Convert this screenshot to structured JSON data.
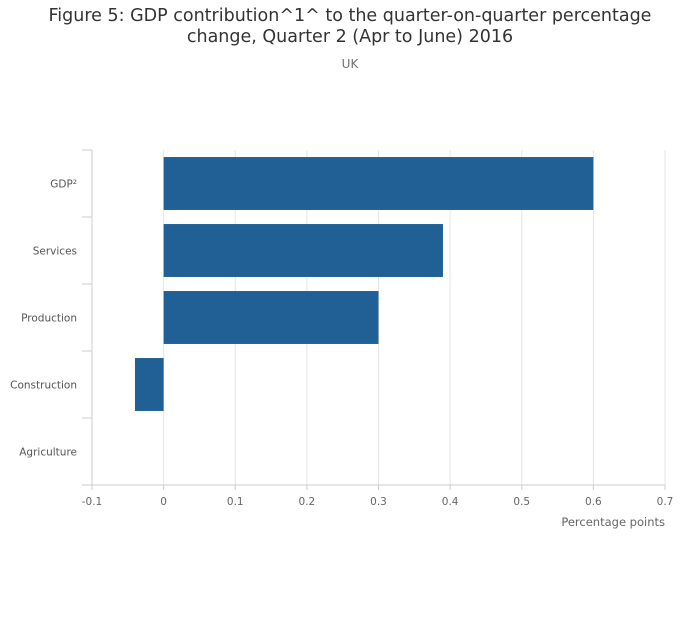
{
  "chart_data": {
    "type": "bar",
    "orientation": "horizontal",
    "title_lines": [
      "Figure 5: GDP contribution^1^ to the quarter-on-quarter percentage",
      "change, Quarter 2 (Apr to June) 2016"
    ],
    "subtitle": "UK",
    "categories": [
      "GDP²",
      "Services",
      "Production",
      "Construction",
      "Agriculture"
    ],
    "values": [
      0.6,
      0.39,
      0.3,
      -0.04,
      0.0
    ],
    "xlabel": "Percentage points",
    "ylabel": "",
    "xlim": [
      -0.1,
      0.7
    ],
    "xticks": [
      -0.1,
      0,
      0.1,
      0.2,
      0.3,
      0.4,
      0.5,
      0.6,
      0.7
    ],
    "xtick_labels": [
      "-0.1",
      "0",
      "0.1",
      "0.2",
      "0.3",
      "0.4",
      "0.5",
      "0.6",
      "0.7"
    ],
    "bar_color": "#206095",
    "grid": true
  }
}
